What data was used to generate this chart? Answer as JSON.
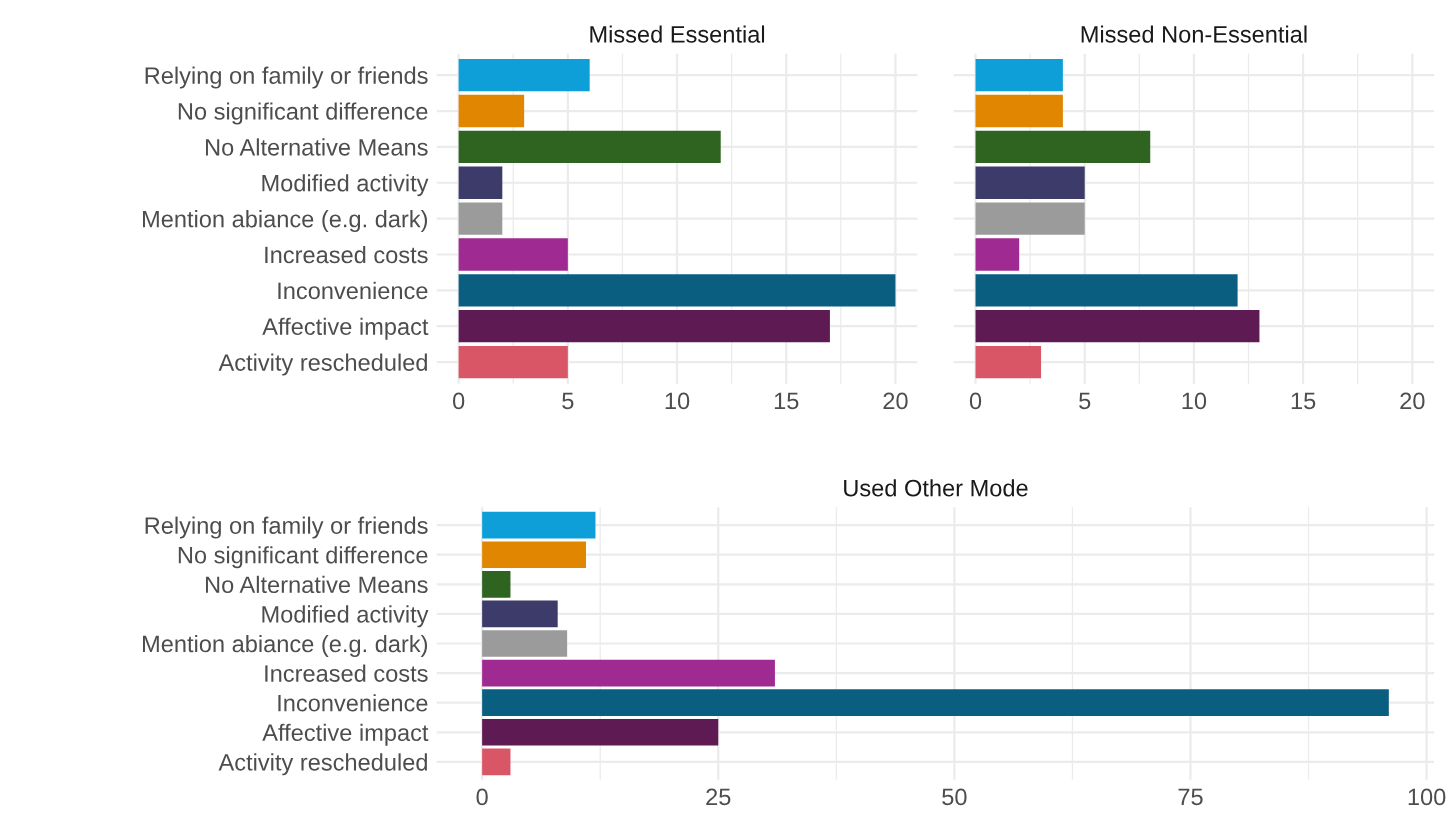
{
  "chart_data": [
    {
      "type": "bar",
      "orientation": "horizontal",
      "title": "Missed Essential",
      "categories": [
        "Relying on family or friends",
        "No significant difference",
        "No Alternative Means",
        "Modified activity",
        "Mention abiance (e.g. dark)",
        "Increased costs",
        "Inconvenience",
        "Affective impact",
        "Activity rescheduled"
      ],
      "values": [
        6,
        3,
        12,
        2,
        2,
        5,
        20,
        17,
        5
      ],
      "colors": [
        "#0f9fd8",
        "#e08600",
        "#2f6320",
        "#3d3b69",
        "#9b9b9b",
        "#9e2a92",
        "#0a5f80",
        "#5e1a53",
        "#d95667"
      ],
      "xlim": [
        -1,
        21
      ],
      "xticks": [
        0,
        5,
        10,
        15,
        20
      ],
      "grid": true
    },
    {
      "type": "bar",
      "orientation": "horizontal",
      "title": "Missed Non-Essential",
      "categories": [
        null,
        null,
        null,
        null,
        null,
        null,
        null,
        null,
        null
      ],
      "values": [
        4,
        4,
        8,
        5,
        5,
        2,
        12,
        13,
        3
      ],
      "colors": [
        "#0f9fd8",
        "#e08600",
        "#2f6320",
        "#3d3b69",
        "#9b9b9b",
        "#9e2a92",
        "#0a5f80",
        "#5e1a53",
        "#d95667"
      ],
      "xlim": [
        -1,
        21
      ],
      "xticks": [
        0,
        5,
        10,
        15,
        20
      ],
      "grid": true,
      "tick_labels": "x"
    },
    {
      "type": "bar",
      "orientation": "horizontal",
      "title": "Used Other Mode",
      "categories": [
        "Relying on family or friends",
        "No significant difference",
        "No Alternative Means",
        "Modified activity",
        "Mention abiance (e.g. dark)",
        "Increased costs",
        "Inconvenience",
        "Affective impact",
        "Activity rescheduled"
      ],
      "values": [
        12,
        11,
        3,
        8,
        9,
        31,
        96,
        25,
        3
      ],
      "colors": [
        "#0f9fd8",
        "#e08600",
        "#2f6320",
        "#3d3b69",
        "#9b9b9b",
        "#9e2a92",
        "#0a5f80",
        "#5e1a53",
        "#d95667"
      ],
      "xlim": [
        -4.8,
        100.8
      ],
      "xticks": [
        0,
        25,
        50,
        75,
        100
      ],
      "grid": true
    }
  ]
}
